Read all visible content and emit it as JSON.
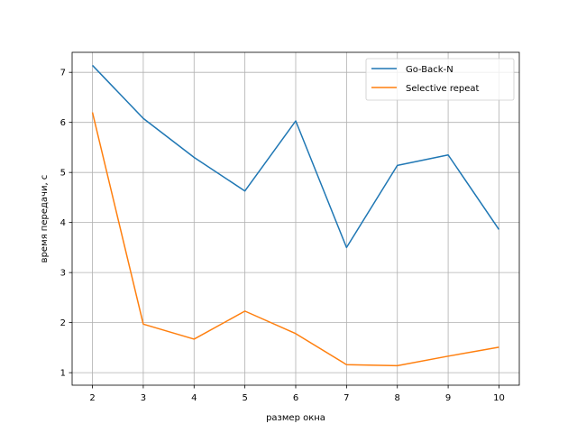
{
  "chart_data": {
    "type": "line",
    "title": "",
    "xlabel": "размер окна",
    "ylabel": "время передачи, с",
    "x": [
      2,
      3,
      4,
      5,
      6,
      7,
      8,
      9,
      10
    ],
    "xticks": [
      2,
      3,
      4,
      5,
      6,
      7,
      8,
      9,
      10
    ],
    "yticks": [
      1,
      2,
      3,
      4,
      5,
      6,
      7
    ],
    "xlim": [
      1.6,
      10.4
    ],
    "ylim": [
      0.75,
      7.4
    ],
    "grid": true,
    "legend_position": "top-right",
    "series": [
      {
        "name": "Go-Back-N",
        "color": "#1f77b4",
        "values": [
          7.14,
          6.08,
          5.3,
          4.63,
          6.03,
          3.5,
          5.14,
          5.35,
          3.86
        ]
      },
      {
        "name": "Selective repeat",
        "color": "#ff7f0e",
        "values": [
          6.2,
          1.97,
          1.67,
          2.23,
          1.78,
          1.16,
          1.14,
          1.33,
          1.51
        ]
      }
    ]
  }
}
